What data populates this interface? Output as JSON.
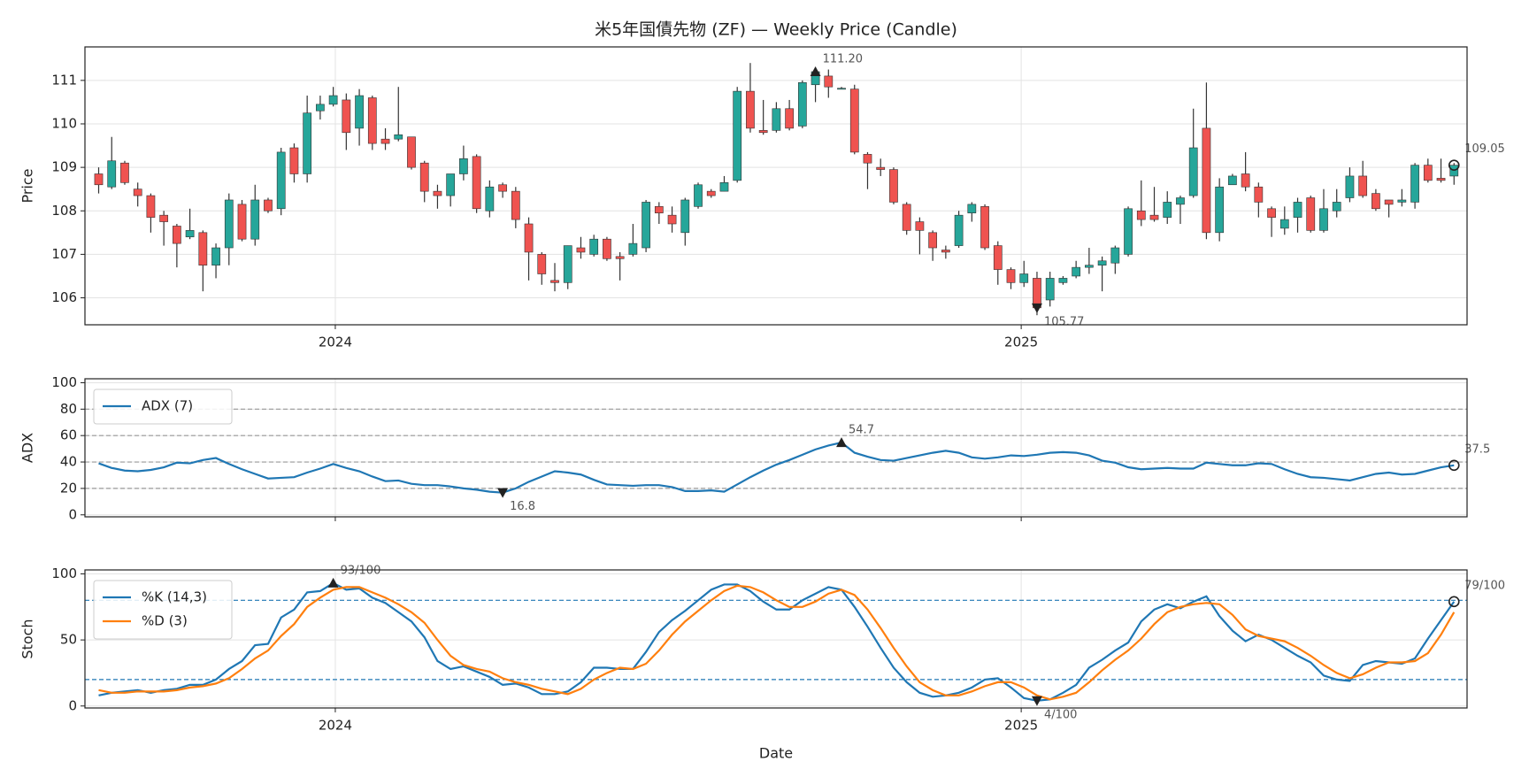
{
  "chart_data": [
    {
      "type": "candlestick",
      "title": "米5年国債先物 (ZF) — Weekly Price (Candle)",
      "ylabel": "Price",
      "x": [
        2023.655,
        2023.674,
        2023.693,
        2023.712,
        2023.731,
        2023.75,
        2023.769,
        2023.788,
        2023.807,
        2023.826,
        2023.845,
        2023.864,
        2023.883,
        2023.902,
        2023.921,
        2023.94,
        2023.959,
        2023.978,
        2023.997,
        2024.016,
        2024.035,
        2024.054,
        2024.073,
        2024.092,
        2024.111,
        2024.13,
        2024.149,
        2024.168,
        2024.187,
        2024.206,
        2024.225,
        2024.244,
        2024.263,
        2024.282,
        2024.301,
        2024.32,
        2024.339,
        2024.358,
        2024.377,
        2024.396,
        2024.415,
        2024.434,
        2024.453,
        2024.472,
        2024.491,
        2024.51,
        2024.529,
        2024.548,
        2024.567,
        2024.586,
        2024.605,
        2024.624,
        2024.643,
        2024.662,
        2024.681,
        2024.7,
        2024.719,
        2024.738,
        2024.757,
        2024.776,
        2024.795,
        2024.814,
        2024.833,
        2024.852,
        2024.871,
        2024.89,
        2024.909,
        2024.928,
        2024.947,
        2024.966,
        2024.985,
        2025.004,
        2025.023,
        2025.042,
        2025.061,
        2025.08,
        2025.099,
        2025.118,
        2025.137,
        2025.156,
        2025.175,
        2025.194,
        2025.213,
        2025.232,
        2025.251,
        2025.27,
        2025.289,
        2025.308,
        2025.327,
        2025.346,
        2025.365,
        2025.384,
        2025.403,
        2025.422,
        2025.441,
        2025.46,
        2025.479,
        2025.498,
        2025.517,
        2025.536,
        2025.555,
        2025.574,
        2025.593,
        2025.612,
        2025.631
      ],
      "open": [
        108.85,
        108.55,
        109.1,
        108.5,
        108.35,
        107.9,
        107.65,
        107.4,
        107.5,
        106.75,
        107.15,
        108.15,
        107.35,
        108.25,
        108.05,
        109.45,
        108.85,
        110.3,
        110.45,
        110.55,
        109.9,
        110.6,
        109.65,
        109.65,
        109.7,
        109.1,
        108.45,
        108.35,
        108.85,
        109.25,
        108.0,
        108.6,
        108.45,
        107.7,
        107.0,
        106.4,
        106.35,
        107.15,
        107.0,
        107.35,
        106.95,
        107.0,
        107.15,
        108.1,
        107.9,
        107.5,
        108.1,
        108.45,
        108.45,
        108.7,
        110.75,
        109.85,
        109.85,
        110.35,
        109.95,
        110.9,
        111.1,
        110.8,
        110.8,
        109.3,
        109.0,
        108.95,
        108.15,
        107.75,
        107.5,
        107.1,
        107.2,
        107.95,
        108.1,
        107.2,
        106.65,
        106.35,
        106.45,
        105.95,
        106.35,
        106.5,
        106.7,
        106.75,
        106.8,
        107.0,
        108.0,
        107.9,
        107.85,
        108.15,
        108.35,
        109.9,
        107.5,
        108.6,
        108.85,
        108.55,
        108.05,
        107.6,
        107.85,
        108.3,
        107.55,
        108.0,
        108.3,
        108.8,
        108.4,
        108.25,
        108.2,
        108.2,
        109.05,
        108.75,
        108.8
      ],
      "high": [
        109.0,
        109.7,
        109.15,
        108.65,
        108.4,
        108.0,
        107.7,
        108.05,
        107.55,
        107.25,
        108.4,
        108.25,
        108.6,
        108.3,
        109.45,
        109.55,
        110.65,
        110.65,
        110.85,
        110.7,
        110.8,
        110.65,
        109.9,
        110.85,
        109.7,
        109.15,
        108.6,
        108.85,
        109.5,
        109.3,
        108.7,
        108.65,
        108.55,
        107.85,
        107.05,
        106.8,
        107.2,
        107.4,
        107.45,
        107.4,
        107.05,
        107.7,
        108.25,
        108.2,
        108.1,
        108.3,
        108.65,
        108.5,
        108.8,
        110.85,
        111.4,
        110.55,
        110.5,
        110.55,
        111.0,
        111.3,
        111.25,
        110.85,
        110.9,
        109.35,
        109.2,
        109.0,
        108.2,
        107.85,
        107.55,
        107.2,
        108.0,
        108.2,
        108.15,
        107.3,
        106.7,
        106.85,
        106.6,
        106.6,
        106.5,
        106.85,
        107.15,
        106.95,
        107.2,
        108.1,
        108.7,
        108.55,
        108.45,
        108.35,
        110.35,
        110.95,
        108.75,
        108.85,
        109.35,
        108.65,
        108.1,
        108.1,
        108.3,
        108.35,
        108.5,
        108.5,
        109.0,
        109.15,
        108.5,
        108.25,
        108.5,
        109.1,
        109.2,
        109.2,
        109.1
      ],
      "low": [
        108.4,
        108.5,
        108.6,
        108.1,
        107.5,
        107.2,
        106.7,
        107.35,
        106.15,
        106.45,
        106.75,
        107.3,
        107.2,
        107.95,
        107.9,
        108.65,
        108.65,
        110.1,
        110.4,
        109.4,
        109.5,
        109.4,
        109.4,
        109.6,
        108.95,
        108.2,
        108.05,
        108.1,
        108.7,
        107.95,
        107.85,
        108.3,
        107.6,
        106.4,
        106.3,
        106.15,
        106.2,
        106.9,
        106.95,
        106.85,
        106.4,
        106.95,
        107.05,
        107.7,
        107.5,
        107.2,
        108.05,
        108.3,
        108.45,
        108.65,
        109.8,
        109.75,
        109.8,
        109.85,
        109.9,
        110.5,
        110.6,
        110.8,
        109.3,
        108.5,
        108.8,
        108.15,
        107.45,
        107.0,
        106.85,
        106.9,
        107.15,
        107.75,
        107.1,
        106.3,
        106.2,
        106.25,
        105.6,
        105.8,
        106.3,
        106.45,
        106.55,
        106.15,
        106.55,
        106.95,
        107.65,
        107.75,
        107.7,
        107.7,
        108.3,
        107.35,
        107.3,
        108.6,
        108.45,
        107.85,
        107.4,
        107.45,
        107.5,
        107.5,
        107.5,
        107.85,
        108.2,
        108.3,
        108.0,
        107.85,
        108.1,
        108.05,
        108.65,
        108.65,
        108.6
      ],
      "close": [
        108.6,
        109.15,
        108.65,
        108.35,
        107.85,
        107.75,
        107.25,
        107.55,
        106.75,
        107.15,
        108.25,
        107.35,
        108.25,
        108.0,
        109.35,
        108.85,
        110.25,
        110.45,
        110.65,
        109.8,
        110.65,
        109.55,
        109.55,
        109.75,
        109.0,
        108.45,
        108.35,
        108.85,
        109.2,
        108.05,
        108.55,
        108.45,
        107.8,
        107.05,
        106.55,
        106.35,
        107.2,
        107.05,
        107.35,
        106.9,
        106.9,
        107.25,
        108.2,
        107.95,
        107.7,
        108.25,
        108.6,
        108.35,
        108.65,
        110.75,
        109.9,
        109.8,
        110.35,
        109.9,
        110.95,
        111.2,
        110.85,
        110.82,
        109.35,
        109.1,
        108.95,
        108.2,
        107.55,
        107.55,
        107.15,
        107.05,
        107.9,
        108.15,
        107.15,
        106.65,
        106.35,
        106.55,
        105.77,
        106.45,
        106.45,
        106.7,
        106.75,
        106.85,
        107.15,
        108.05,
        107.8,
        107.8,
        108.2,
        108.3,
        109.45,
        107.5,
        108.55,
        108.8,
        108.55,
        108.2,
        107.85,
        107.8,
        108.2,
        107.55,
        108.05,
        108.2,
        108.8,
        108.35,
        108.05,
        108.15,
        108.25,
        109.05,
        108.7,
        108.7,
        109.05
      ],
      "up_color": "#26a69a",
      "down_color": "#ef5350",
      "xlim": [
        2023.635,
        2025.65
      ],
      "xticks": [
        2024,
        2025
      ],
      "ylim": [
        105.38,
        111.77
      ],
      "yticks": [
        106,
        107,
        108,
        109,
        110,
        111
      ],
      "grid": true,
      "annotations": [
        {
          "x": 2024.7,
          "y": 111.2,
          "label": "111.20",
          "marker": "^"
        },
        {
          "x": 2025.023,
          "y": 105.77,
          "label": "105.77",
          "marker": "v"
        },
        {
          "x": 2025.631,
          "y": 109.05,
          "label": "109.05",
          "marker": "o"
        }
      ]
    },
    {
      "type": "line",
      "ylabel": "ADX",
      "legend": "upper left",
      "series": [
        {
          "name": "ADX (7)",
          "color": "#1f77b4",
          "values": [
            39,
            35.5,
            33.5,
            33,
            34,
            36,
            39.5,
            39,
            41.5,
            43,
            38.5,
            34.5,
            31,
            27.5,
            28,
            28.5,
            32,
            35,
            38.5,
            35.5,
            33,
            29,
            25.5,
            26,
            23.5,
            22.5,
            22.5,
            21.5,
            20,
            19,
            17.5,
            16.8,
            20,
            25,
            29,
            33,
            32,
            30.5,
            26.5,
            23,
            22.5,
            22,
            22.5,
            22.5,
            21,
            18,
            18,
            18.5,
            17.5,
            23,
            28.5,
            33.5,
            38,
            41.5,
            45.5,
            49.5,
            52.5,
            54.7,
            47,
            44,
            41.5,
            41,
            43,
            45,
            47,
            48.5,
            47,
            43.5,
            42.5,
            43.5,
            45,
            44.5,
            45.5,
            47,
            47.5,
            47,
            45,
            41,
            39.5,
            36,
            34.5,
            35,
            35.5,
            35,
            35,
            39.5,
            38.5,
            37.5,
            37.5,
            39,
            38.5,
            34.5,
            31,
            28.5,
            28,
            27,
            26,
            28.5,
            31,
            32,
            30.5,
            31,
            33.5,
            36,
            37.5
          ]
        }
      ],
      "ylim": [
        -1.5,
        103
      ],
      "yticks": [
        0,
        20,
        40,
        60,
        80,
        100
      ],
      "grid": true,
      "hlines": [
        20,
        40,
        60,
        80
      ],
      "hline_color": "#999999",
      "annotations": [
        {
          "x": 2024.738,
          "y": 54.7,
          "label": "54.7",
          "marker": "^"
        },
        {
          "x": 2024.244,
          "y": 16.8,
          "label": "16.8",
          "marker": "v"
        },
        {
          "x": 2025.631,
          "y": 37.5,
          "label": "37.5",
          "marker": "o"
        }
      ]
    },
    {
      "type": "line",
      "ylabel": "Stoch",
      "xlabel": "Date",
      "legend": "upper left",
      "series": [
        {
          "name": "%K (14,3)",
          "color": "#1f77b4",
          "values": [
            8,
            10,
            11,
            12,
            10,
            12,
            13,
            16,
            16,
            20,
            28,
            34,
            46,
            47,
            67,
            73,
            86,
            87,
            93,
            88,
            89,
            82,
            78,
            71,
            64,
            52,
            34,
            28,
            30,
            26,
            22,
            16,
            17,
            14,
            9,
            9,
            11,
            18,
            29,
            29,
            28,
            28,
            41,
            56,
            65,
            72,
            80,
            88,
            92,
            92,
            87,
            79,
            73,
            73,
            80,
            85,
            90,
            88,
            75,
            60,
            44,
            29,
            18,
            10,
            7,
            8,
            10,
            14,
            20,
            21,
            14,
            6,
            4,
            5,
            10,
            16,
            29,
            35,
            42,
            48,
            64,
            73,
            77,
            74,
            79,
            83,
            68,
            57,
            49,
            54,
            50,
            44,
            38,
            33,
            23,
            20,
            19,
            31,
            34,
            33,
            32,
            36,
            51,
            65,
            79
          ]
        },
        {
          "name": "%D (3)",
          "color": "#ff7f0e",
          "values": [
            12,
            10,
            10,
            11,
            11,
            11,
            12,
            14,
            15,
            17,
            21,
            28,
            36,
            42,
            53,
            62,
            75,
            82,
            88,
            90,
            90,
            86,
            82,
            77,
            71,
            63,
            50,
            38,
            31,
            28,
            26,
            21,
            18,
            16,
            13,
            11,
            9,
            13,
            20,
            25,
            29,
            28,
            32,
            42,
            54,
            64,
            72,
            80,
            87,
            91,
            90,
            86,
            80,
            75,
            75,
            79,
            85,
            88,
            84,
            73,
            59,
            44,
            30,
            18,
            12,
            8,
            8,
            11,
            15,
            18,
            18,
            14,
            8,
            5,
            7,
            10,
            18,
            27,
            35,
            42,
            51,
            62,
            71,
            75,
            77,
            78,
            77,
            69,
            58,
            53,
            51,
            49,
            44,
            38,
            31,
            25,
            21,
            24,
            29,
            33,
            33,
            34,
            40,
            54,
            71
          ]
        }
      ],
      "xticks": [
        2024,
        2025
      ],
      "ylim": [
        -1.5,
        103
      ],
      "yticks": [
        0,
        50,
        100
      ],
      "grid": true,
      "hlines": [
        20,
        80
      ],
      "hline_color": "#1f77b4",
      "annotations": [
        {
          "x": 2023.997,
          "y": 93,
          "label": "93/100",
          "marker": "^"
        },
        {
          "x": 2025.023,
          "y": 4,
          "label": "4/100",
          "marker": "v"
        },
        {
          "x": 2025.631,
          "y": 79,
          "label": "79/100",
          "marker": "o"
        }
      ]
    }
  ]
}
